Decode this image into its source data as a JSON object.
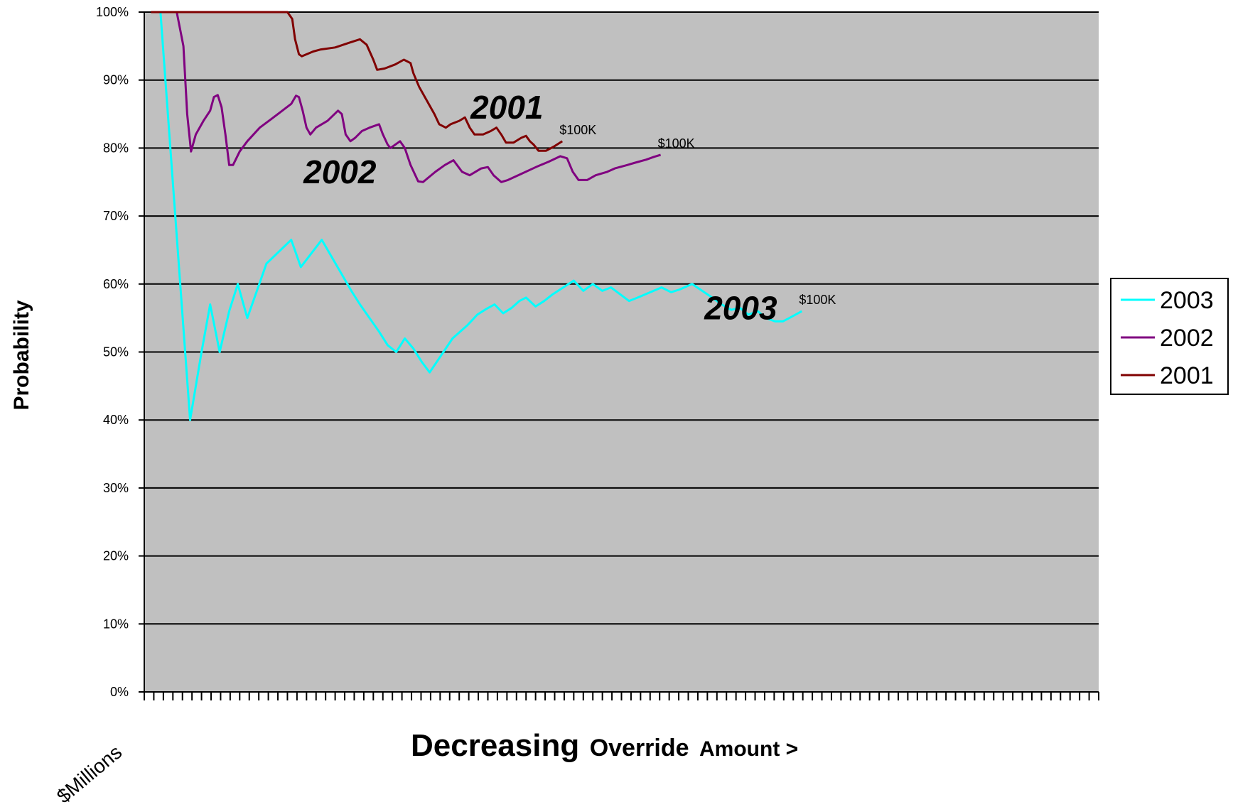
{
  "chart_data": {
    "type": "line",
    "xlabel": {
      "big": "Decreasing",
      "mid": "Override",
      "small": "Amount >"
    },
    "ylabel": "Probability",
    "x_start_label": "$Millions",
    "ylim": [
      0,
      100
    ],
    "yticks": [
      "0%",
      "10%",
      "20%",
      "30%",
      "40%",
      "50%",
      "60%",
      "70%",
      "80%",
      "90%",
      "100%"
    ],
    "x_points": 101,
    "grid": true,
    "plot_background": "#c0c0c0",
    "legend_position": "right",
    "series": [
      {
        "name": "2003",
        "color": "#00ffff",
        "points": [
          [
            1.7,
            100
          ],
          [
            4.8,
            40
          ],
          [
            6,
            50
          ],
          [
            6.9,
            57
          ],
          [
            7.9,
            50
          ],
          [
            8.9,
            56
          ],
          [
            9.8,
            60
          ],
          [
            10.8,
            55
          ],
          [
            11.8,
            59
          ],
          [
            12.8,
            63
          ],
          [
            15.4,
            66.5
          ],
          [
            16.4,
            62.5
          ],
          [
            18.6,
            66.5
          ],
          [
            21.7,
            59
          ],
          [
            22.6,
            57
          ],
          [
            24.6,
            53
          ],
          [
            25.5,
            51
          ],
          [
            26.4,
            50
          ],
          [
            27.3,
            52
          ],
          [
            28.2,
            50.5
          ],
          [
            29.1,
            48.5
          ],
          [
            29.9,
            47
          ],
          [
            32.3,
            52
          ],
          [
            33.9,
            54
          ],
          [
            34.9,
            55.5
          ],
          [
            35.8,
            56.3
          ],
          [
            36.7,
            57
          ],
          [
            37.6,
            55.7
          ],
          [
            38.5,
            56.5
          ],
          [
            39.3,
            57.5
          ],
          [
            40,
            58
          ],
          [
            41,
            56.7
          ],
          [
            41.9,
            57.5
          ],
          [
            42.8,
            58.5
          ],
          [
            45,
            60.5
          ],
          [
            46,
            59
          ],
          [
            47,
            60
          ],
          [
            48,
            59
          ],
          [
            48.9,
            59.5
          ],
          [
            50.8,
            57.5
          ],
          [
            51.7,
            58
          ],
          [
            54.2,
            59.5
          ],
          [
            55.2,
            58.8
          ],
          [
            56.1,
            59.2
          ],
          [
            57.4,
            60
          ],
          [
            59.5,
            58
          ],
          [
            60.5,
            57
          ],
          [
            61.5,
            56.2
          ],
          [
            62.4,
            56.5
          ],
          [
            63.3,
            55.5
          ],
          [
            64.3,
            56
          ],
          [
            65.1,
            55
          ],
          [
            66.1,
            54.5
          ],
          [
            66.9,
            54.5
          ],
          [
            67.6,
            55
          ],
          [
            68.9,
            56
          ]
        ],
        "end_label": "$100K"
      },
      {
        "name": "2002",
        "color": "#800080",
        "points": [
          [
            3.4,
            100
          ],
          [
            4.1,
            95
          ],
          [
            4.5,
            85
          ],
          [
            4.9,
            79.5
          ],
          [
            5.4,
            82
          ],
          [
            6.2,
            84
          ],
          [
            6.9,
            85.5
          ],
          [
            7.3,
            87.5
          ],
          [
            7.7,
            87.8
          ],
          [
            8.1,
            86
          ],
          [
            8.5,
            82
          ],
          [
            8.9,
            77.5
          ],
          [
            9.3,
            77.5
          ],
          [
            10,
            79.5
          ],
          [
            10.8,
            81
          ],
          [
            12.1,
            83
          ],
          [
            14,
            85
          ],
          [
            15.4,
            86.5
          ],
          [
            15.9,
            87.7
          ],
          [
            16.2,
            87.5
          ],
          [
            16.6,
            85.5
          ],
          [
            17,
            83
          ],
          [
            17.4,
            82
          ],
          [
            18,
            83
          ],
          [
            19.2,
            84
          ],
          [
            20.3,
            85.5
          ],
          [
            20.7,
            85
          ],
          [
            21.1,
            82
          ],
          [
            21.6,
            81
          ],
          [
            22.1,
            81.5
          ],
          [
            22.8,
            82.5
          ],
          [
            23.6,
            83
          ],
          [
            24.6,
            83.5
          ],
          [
            25,
            82
          ],
          [
            25.5,
            80.5
          ],
          [
            25.8,
            80
          ],
          [
            26.8,
            81
          ],
          [
            27.3,
            80
          ],
          [
            27.9,
            77.5
          ],
          [
            28.7,
            75.1
          ],
          [
            29.2,
            75
          ],
          [
            30.5,
            76.5
          ],
          [
            31.5,
            77.5
          ],
          [
            32.4,
            78.2
          ],
          [
            33.3,
            76.5
          ],
          [
            34.1,
            76
          ],
          [
            35.3,
            77
          ],
          [
            36,
            77.2
          ],
          [
            36.6,
            76
          ],
          [
            37.4,
            75
          ],
          [
            38.1,
            75.3
          ],
          [
            39.5,
            76.2
          ],
          [
            41.2,
            77.3
          ],
          [
            42.4,
            78
          ],
          [
            43.6,
            78.8
          ],
          [
            44.3,
            78.5
          ],
          [
            44.9,
            76.5
          ],
          [
            45.5,
            75.3
          ],
          [
            46.4,
            75.3
          ],
          [
            47.3,
            76
          ],
          [
            48.5,
            76.5
          ],
          [
            49.3,
            77
          ],
          [
            50.6,
            77.5
          ],
          [
            51.3,
            77.8
          ],
          [
            52.6,
            78.3
          ],
          [
            53.4,
            78.7
          ],
          [
            54.1,
            79
          ]
        ],
        "end_label": "$100K"
      },
      {
        "name": "2001",
        "color": "#800000",
        "points": [
          [
            0.7,
            100
          ],
          [
            15,
            100
          ],
          [
            15.5,
            99
          ],
          [
            15.8,
            96
          ],
          [
            16.2,
            93.8
          ],
          [
            16.5,
            93.5
          ],
          [
            17.7,
            94.2
          ],
          [
            18.5,
            94.5
          ],
          [
            20,
            94.8
          ],
          [
            21.5,
            95.5
          ],
          [
            22.6,
            96
          ],
          [
            23.3,
            95.2
          ],
          [
            24,
            93
          ],
          [
            24.4,
            91.5
          ],
          [
            25.2,
            91.7
          ],
          [
            26.3,
            92.3
          ],
          [
            27.2,
            93
          ],
          [
            27.9,
            92.5
          ],
          [
            28.2,
            91
          ],
          [
            28.8,
            89
          ],
          [
            29.6,
            87
          ],
          [
            30.4,
            85
          ],
          [
            30.9,
            83.5
          ],
          [
            31.6,
            83
          ],
          [
            32.1,
            83.5
          ],
          [
            33,
            84
          ],
          [
            33.6,
            84.5
          ],
          [
            34.1,
            83
          ],
          [
            34.6,
            82
          ],
          [
            35.5,
            82
          ],
          [
            36.3,
            82.5
          ],
          [
            36.9,
            83
          ],
          [
            37.4,
            82
          ],
          [
            37.9,
            80.8
          ],
          [
            38.7,
            80.8
          ],
          [
            39.5,
            81.5
          ],
          [
            40,
            81.8
          ],
          [
            40.4,
            81
          ],
          [
            40.8,
            80.5
          ],
          [
            41.3,
            79.6
          ],
          [
            42.1,
            79.6
          ],
          [
            42.9,
            80.2
          ],
          [
            43.8,
            81
          ]
        ],
        "end_label": "$100K"
      }
    ],
    "legend": [
      {
        "name": "2003",
        "color": "#00ffff"
      },
      {
        "name": "2002",
        "color": "#800080"
      },
      {
        "name": "2001",
        "color": "#800000"
      }
    ],
    "annotations": [
      {
        "text": "2001",
        "x": 38,
        "y": 86
      },
      {
        "text": "2002",
        "x": 20.5,
        "y": 76.5
      },
      {
        "text": "2003",
        "x": 62.5,
        "y": 56.5
      }
    ]
  }
}
